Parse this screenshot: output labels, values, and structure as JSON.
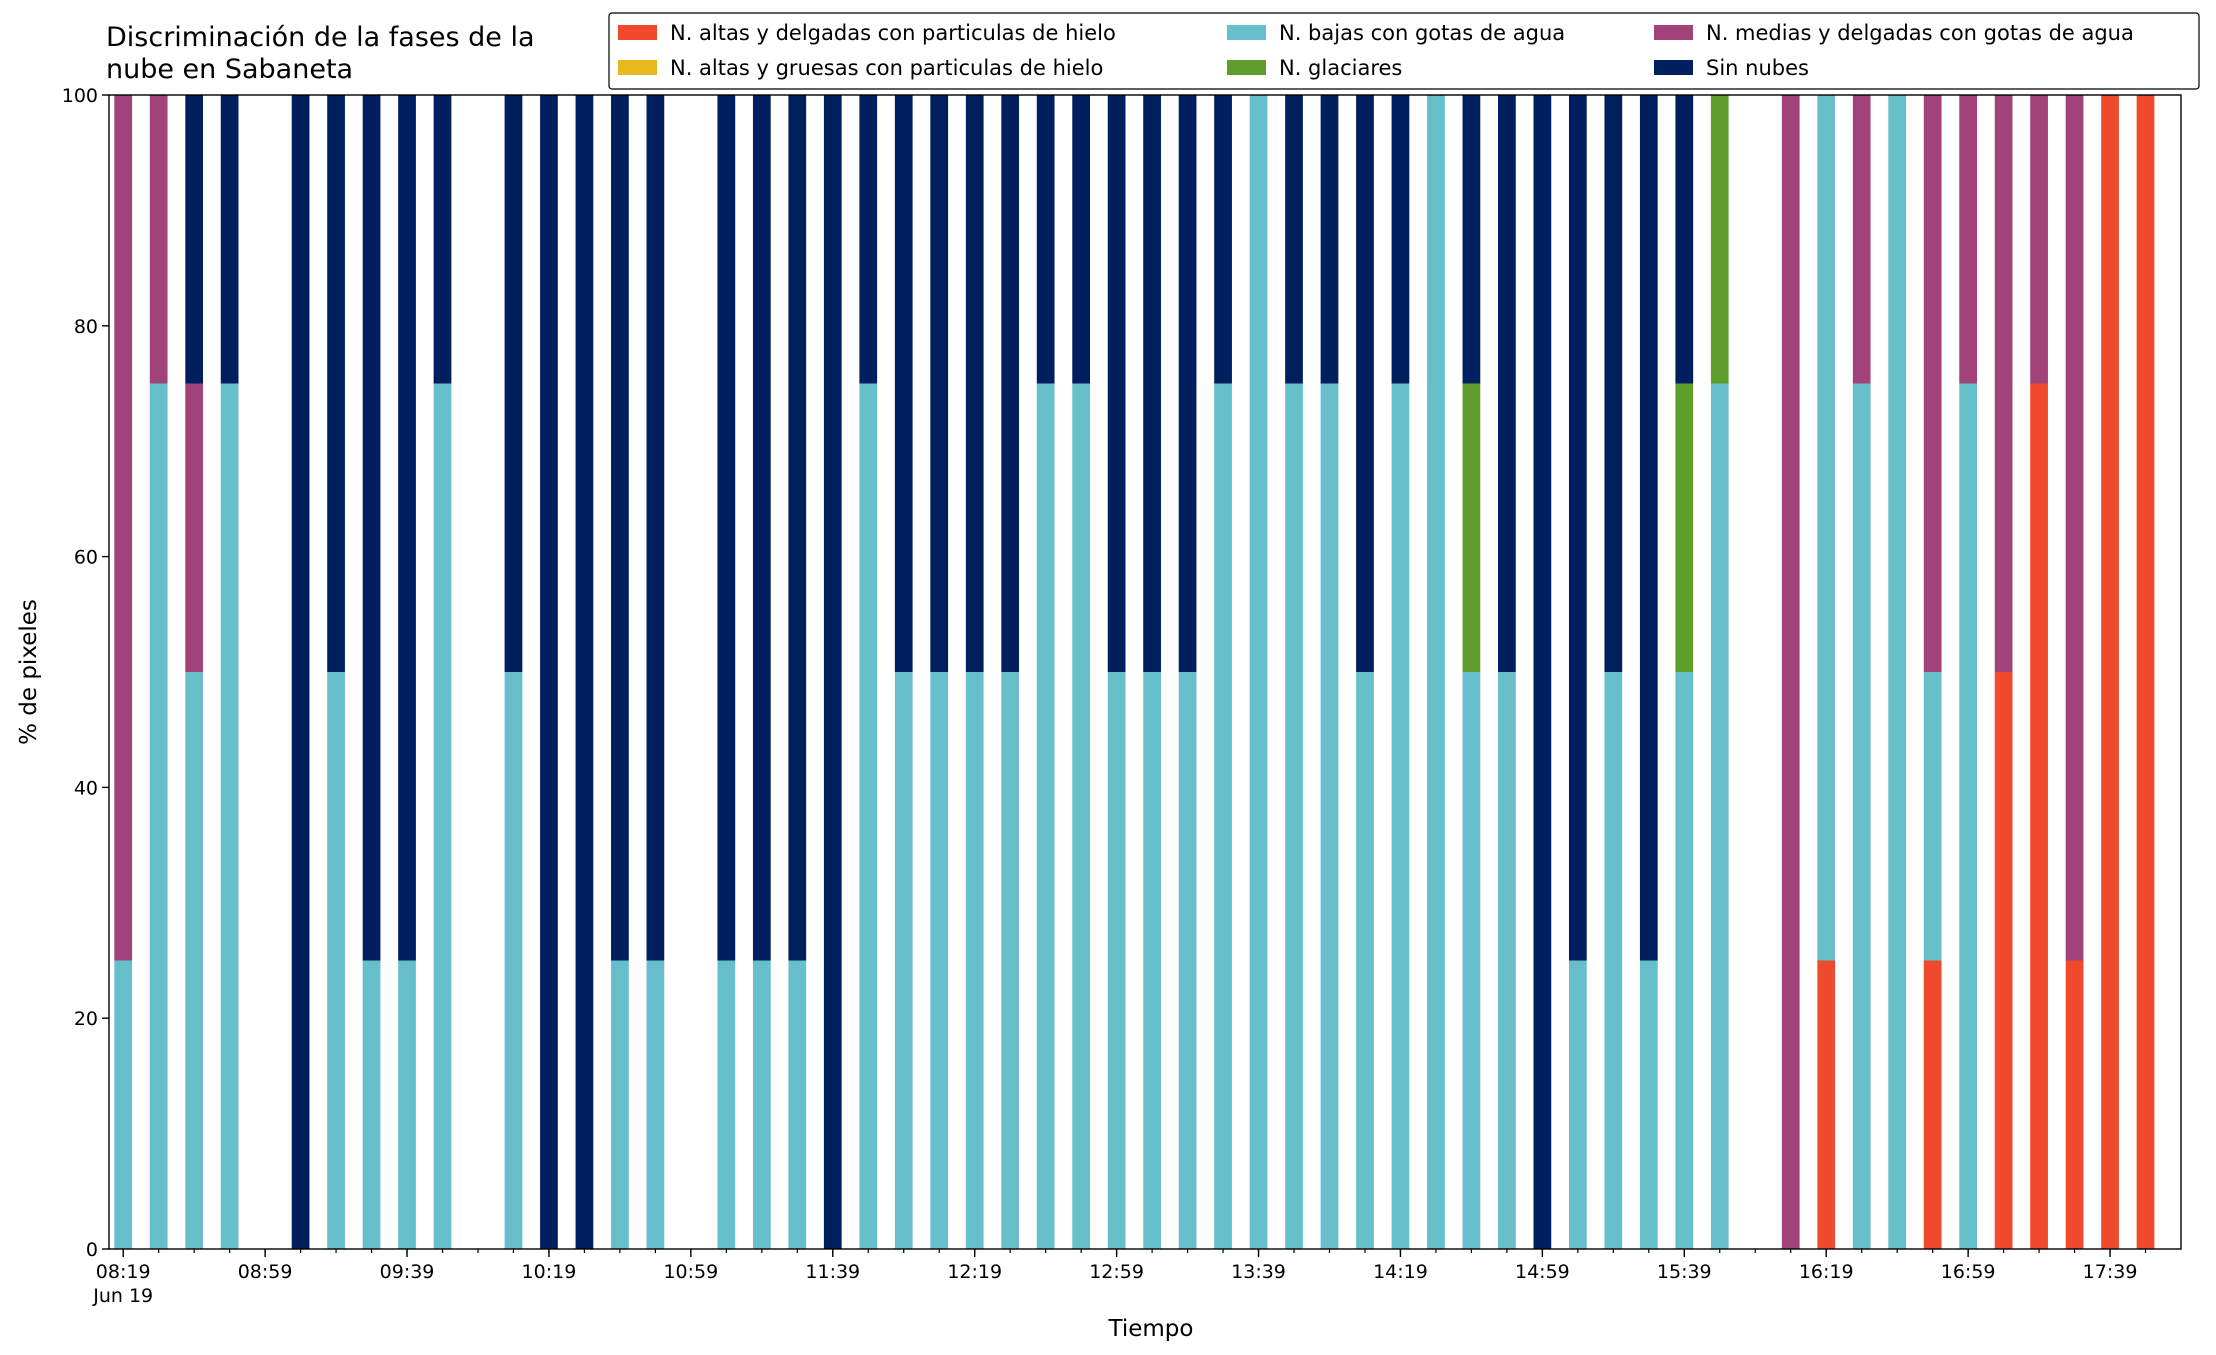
{
  "chart_data": {
    "type": "stacked_bar",
    "title": "Discriminación de la fases de la\nnube en Sabaneta",
    "xlabel": "Tiempo",
    "ylabel": "% de pixeles",
    "date_label": "Jun 19",
    "x": [
      "08:19",
      "08:29",
      "08:39",
      "08:49",
      "08:59",
      "09:09",
      "09:19",
      "09:29",
      "09:39",
      "09:49",
      "09:59",
      "10:09",
      "10:19",
      "10:29",
      "10:39",
      "10:49",
      "10:59",
      "11:09",
      "11:19",
      "11:29",
      "11:39",
      "11:49",
      "11:59",
      "12:09",
      "12:19",
      "12:29",
      "12:39",
      "12:49",
      "12:59",
      "13:09",
      "13:19",
      "13:29",
      "13:39",
      "13:49",
      "13:59",
      "14:09",
      "14:19",
      "14:29",
      "14:39",
      "14:49",
      "14:59",
      "15:09",
      "15:19",
      "15:29",
      "15:39",
      "15:49",
      "15:59",
      "16:09",
      "16:19",
      "16:29",
      "16:39",
      "16:49",
      "16:59",
      "17:09",
      "17:19",
      "17:29",
      "17:39",
      "17:49"
    ],
    "xlim": [
      "08:15",
      "17:59"
    ],
    "xticks": [
      "08:19",
      "08:59",
      "09:39",
      "10:19",
      "10:59",
      "11:39",
      "12:19",
      "12:59",
      "13:39",
      "14:19",
      "14:59",
      "15:39",
      "16:19",
      "16:59",
      "17:39"
    ],
    "ylim": [
      0,
      100
    ],
    "yticks": [
      0,
      20,
      40,
      60,
      80,
      100
    ],
    "grid": false,
    "legend": "upper right",
    "series": [
      {
        "name": "N. altas y delgadas con particulas de hielo",
        "color": "#ef4a2b",
        "values": [
          0,
          0,
          0,
          0,
          null,
          0,
          0,
          0,
          0,
          0,
          null,
          0,
          0,
          0,
          0,
          0,
          null,
          0,
          0,
          0,
          0,
          0,
          0,
          0,
          0,
          0,
          0,
          0,
          0,
          0,
          0,
          0,
          0,
          0,
          0,
          0,
          0,
          0,
          0,
          0,
          0,
          0,
          0,
          0,
          0,
          0,
          null,
          0,
          25,
          0,
          0,
          25,
          0,
          50,
          75,
          25,
          100,
          100
        ]
      },
      {
        "name": "N. altas y gruesas con particulas de hielo",
        "color": "#e6b91e",
        "values": [
          0,
          0,
          0,
          0,
          null,
          0,
          0,
          0,
          0,
          0,
          null,
          0,
          0,
          0,
          0,
          0,
          null,
          0,
          0,
          0,
          0,
          0,
          0,
          0,
          0,
          0,
          0,
          0,
          0,
          0,
          0,
          0,
          0,
          0,
          0,
          0,
          0,
          0,
          0,
          0,
          0,
          0,
          0,
          0,
          0,
          0,
          null,
          0,
          0,
          0,
          0,
          0,
          0,
          0,
          0,
          0,
          0,
          0
        ]
      },
      {
        "name": "N. bajas con gotas de agua",
        "color": "#66bfca",
        "values": [
          25,
          75,
          50,
          75,
          null,
          0,
          50,
          25,
          25,
          75,
          null,
          50,
          0,
          0,
          25,
          25,
          null,
          25,
          25,
          25,
          0,
          75,
          50,
          50,
          50,
          50,
          75,
          75,
          50,
          50,
          50,
          75,
          100,
          75,
          75,
          50,
          75,
          100,
          50,
          50,
          0,
          25,
          50,
          25,
          50,
          75,
          null,
          0,
          75,
          75,
          100,
          25,
          75,
          0,
          0,
          0,
          0,
          0
        ]
      },
      {
        "name": "N. glaciares",
        "color": "#5f9e2c",
        "values": [
          0,
          0,
          0,
          0,
          null,
          0,
          0,
          0,
          0,
          0,
          null,
          0,
          0,
          0,
          0,
          0,
          null,
          0,
          0,
          0,
          0,
          0,
          0,
          0,
          0,
          0,
          0,
          0,
          0,
          0,
          0,
          0,
          0,
          0,
          0,
          0,
          0,
          0,
          25,
          0,
          0,
          0,
          0,
          0,
          25,
          25,
          null,
          0,
          0,
          0,
          0,
          0,
          0,
          0,
          0,
          0,
          0,
          0
        ]
      },
      {
        "name": "N. medias y delgadas con gotas de agua",
        "color": "#a2427a",
        "values": [
          75,
          25,
          25,
          0,
          null,
          0,
          0,
          0,
          0,
          0,
          null,
          0,
          0,
          0,
          0,
          0,
          null,
          0,
          0,
          0,
          0,
          0,
          0,
          0,
          0,
          0,
          0,
          0,
          0,
          0,
          0,
          0,
          0,
          0,
          0,
          0,
          0,
          0,
          0,
          0,
          0,
          0,
          0,
          0,
          0,
          0,
          null,
          100,
          0,
          25,
          0,
          50,
          25,
          50,
          25,
          75,
          0,
          0
        ]
      },
      {
        "name": "Sin nubes",
        "color": "#001f5f",
        "values": [
          0,
          0,
          25,
          25,
          null,
          100,
          50,
          75,
          75,
          25,
          null,
          50,
          100,
          100,
          75,
          75,
          null,
          75,
          75,
          75,
          100,
          25,
          50,
          50,
          50,
          50,
          25,
          25,
          50,
          50,
          50,
          25,
          0,
          25,
          25,
          50,
          25,
          0,
          25,
          50,
          100,
          75,
          50,
          75,
          25,
          0,
          null,
          0,
          0,
          0,
          0,
          0,
          0,
          0,
          0,
          0,
          0,
          0
        ]
      }
    ]
  }
}
